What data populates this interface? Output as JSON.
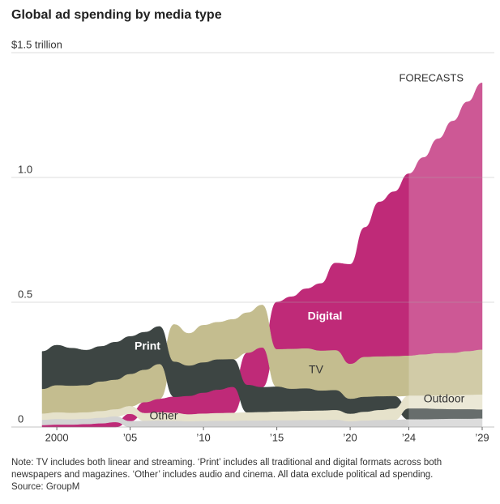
{
  "chart_data": {
    "type": "ranked_stream",
    "title": "Global ad spending by media type",
    "annotation": "FORECASTS",
    "forecast_from": 2024,
    "note": "Note: TV includes both linear and streaming. ‘Print’ includes all traditional and digital formats across both newspapers and magazines. ‘Other’ includes audio and cinema. All data exclude political ad spending.",
    "source": "Source: GroupM",
    "x": [
      1999,
      2000,
      2001,
      2002,
      2003,
      2004,
      2005,
      2006,
      2007,
      2008,
      2009,
      2010,
      2011,
      2012,
      2013,
      2014,
      2015,
      2016,
      2017,
      2018,
      2019,
      2020,
      2021,
      2022,
      2023,
      2024,
      2025,
      2026,
      2027,
      2028,
      2029
    ],
    "xlim": [
      1999,
      2029
    ],
    "xticks": [
      2000,
      {
        "value": 2005,
        "label": "’05"
      },
      {
        "value": 2010,
        "label": "’10"
      },
      {
        "value": 2015,
        "label": "’15"
      },
      {
        "value": 2020,
        "label": "’20"
      },
      {
        "value": 2024,
        "label": "’24"
      },
      {
        "value": 2029,
        "label": "’29"
      }
    ],
    "ylim": [
      0,
      1.5
    ],
    "yticks": [
      0,
      0.5,
      {
        "value": 1,
        "label": "1.0"
      },
      {
        "value": 1.5,
        "label": "$1.5 trillion"
      }
    ],
    "grid": true,
    "series": [
      {
        "name": "Digital",
        "color": "#bf2a78",
        "values": [
          0.008,
          0.01,
          0.01,
          0.012,
          0.015,
          0.02,
          0.03,
          0.045,
          0.055,
          0.065,
          0.075,
          0.085,
          0.095,
          0.105,
          0.13,
          0.16,
          0.19,
          0.21,
          0.24,
          0.27,
          0.35,
          0.4,
          0.52,
          0.62,
          0.66,
          0.73,
          0.79,
          0.86,
          0.93,
          1.0,
          1.07
        ]
      },
      {
        "name": "TV",
        "color": "#c4bd8f",
        "values": [
          0.1,
          0.11,
          0.11,
          0.11,
          0.12,
          0.12,
          0.13,
          0.13,
          0.14,
          0.15,
          0.13,
          0.15,
          0.15,
          0.16,
          0.16,
          0.17,
          0.15,
          0.16,
          0.16,
          0.16,
          0.16,
          0.14,
          0.16,
          0.16,
          0.16,
          0.16,
          0.165,
          0.17,
          0.17,
          0.175,
          0.18
        ]
      },
      {
        "name": "Print",
        "color": "#3d4543",
        "values": [
          0.15,
          0.16,
          0.15,
          0.14,
          0.14,
          0.15,
          0.15,
          0.15,
          0.15,
          0.14,
          0.12,
          0.12,
          0.12,
          0.11,
          0.11,
          0.1,
          0.1,
          0.09,
          0.09,
          0.08,
          0.08,
          0.06,
          0.06,
          0.055,
          0.05,
          0.045,
          0.045,
          0.042,
          0.04,
          0.04,
          0.038
        ]
      },
      {
        "name": "Outdoor",
        "color": "#e6e2cb",
        "values": [
          0.025,
          0.027,
          0.026,
          0.026,
          0.027,
          0.028,
          0.03,
          0.031,
          0.033,
          0.032,
          0.028,
          0.03,
          0.031,
          0.032,
          0.033,
          0.034,
          0.035,
          0.036,
          0.037,
          0.038,
          0.039,
          0.03,
          0.035,
          0.04,
          0.045,
          0.05,
          0.05,
          0.052,
          0.054,
          0.056,
          0.058
        ]
      },
      {
        "name": "Other",
        "color": "#d3d3d3",
        "values": [
          0.02,
          0.021,
          0.02,
          0.02,
          0.021,
          0.022,
          0.023,
          0.024,
          0.025,
          0.024,
          0.022,
          0.023,
          0.024,
          0.024,
          0.025,
          0.025,
          0.026,
          0.026,
          0.027,
          0.027,
          0.028,
          0.022,
          0.025,
          0.027,
          0.028,
          0.03,
          0.03,
          0.031,
          0.032,
          0.032,
          0.033
        ]
      }
    ]
  }
}
